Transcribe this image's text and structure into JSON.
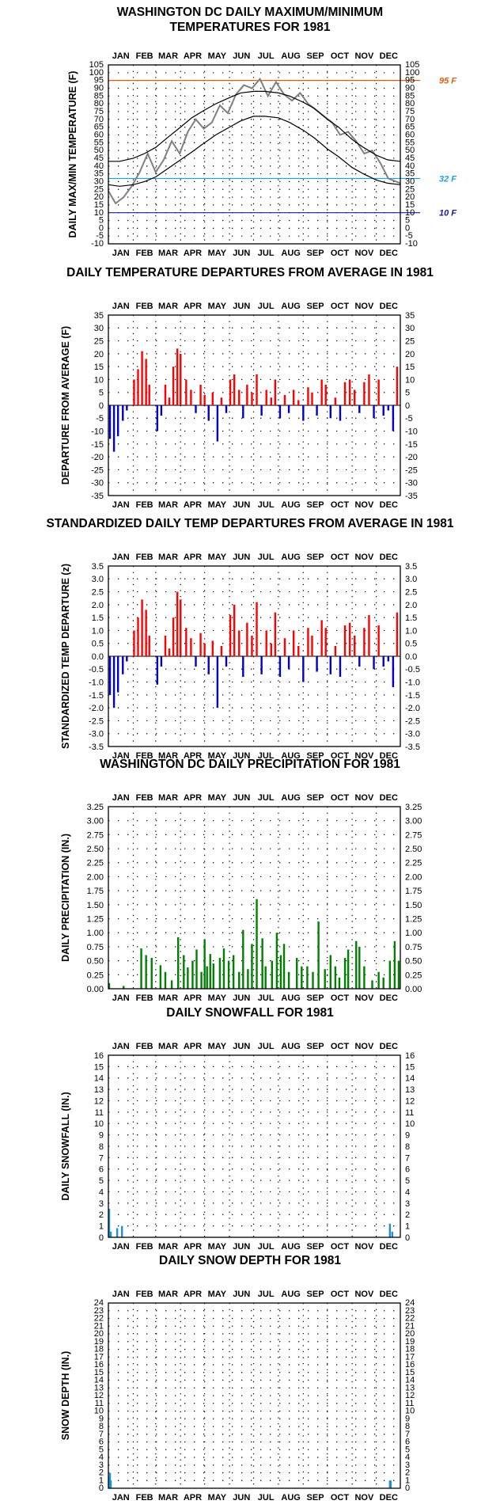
{
  "chart_data": [
    {
      "id": "temp",
      "type": "line",
      "title_lines": [
        "WASHINGTON DC DAILY MAXIMUM/MINIMUM",
        "TEMPERATURES FOR 1981"
      ],
      "ylabel": "DAILY MAX/MIN TEMPERATURE (F)",
      "months": [
        "JAN",
        "FEB",
        "MAR",
        "APR",
        "MAY",
        "JUN",
        "JUL",
        "AUG",
        "SEP",
        "OCT",
        "NOV",
        "DEC"
      ],
      "xlim": [
        1,
        365
      ],
      "ylim": [
        -10,
        105
      ],
      "yticks": [
        -10,
        -5,
        0,
        5,
        10,
        15,
        20,
        25,
        30,
        35,
        40,
        45,
        50,
        55,
        60,
        65,
        70,
        75,
        80,
        85,
        90,
        95,
        100,
        105
      ],
      "ref_lines": [
        {
          "value": 95,
          "label": "95 F",
          "color": "#e06010"
        },
        {
          "value": 32,
          "label": "32 F",
          "color": "#1ea0e6"
        },
        {
          "value": 10,
          "label": "10 F",
          "color": "#1a1aa0"
        }
      ],
      "series": [
        {
          "role": "actual",
          "color": "#808080",
          "x": [
            1,
            10,
            20,
            30,
            40,
            50,
            60,
            70,
            80,
            90,
            100,
            110,
            120,
            130,
            140,
            150,
            160,
            170,
            180,
            190,
            200,
            210,
            220,
            230,
            240,
            250,
            260,
            270,
            280,
            290,
            300,
            310,
            320,
            330,
            340,
            350,
            365
          ],
          "y": [
            24,
            16,
            20,
            27,
            36,
            48,
            36,
            44,
            56,
            48,
            62,
            70,
            64,
            68,
            79,
            74,
            86,
            92,
            90,
            96,
            85,
            94,
            86,
            82,
            87,
            80,
            76,
            72,
            68,
            60,
            62,
            56,
            48,
            50,
            42,
            32,
            29
          ]
        },
        {
          "role": "normal_max",
          "color": "#000000",
          "x": [
            1,
            15,
            32,
            46,
            60,
            74,
            91,
            105,
            121,
            135,
            152,
            166,
            182,
            196,
            213,
            227,
            244,
            258,
            274,
            288,
            305,
            319,
            335,
            349,
            365
          ],
          "y": [
            43,
            43,
            45,
            48,
            52,
            58,
            65,
            71,
            76,
            80,
            84,
            87,
            88,
            88,
            87,
            85,
            81,
            77,
            70,
            65,
            57,
            52,
            47,
            44,
            43
          ]
        },
        {
          "role": "normal_min",
          "color": "#000000",
          "x": [
            1,
            15,
            32,
            46,
            60,
            74,
            91,
            105,
            121,
            135,
            152,
            166,
            182,
            196,
            213,
            227,
            244,
            258,
            274,
            288,
            305,
            319,
            335,
            349,
            365
          ],
          "y": [
            28,
            27,
            28,
            30,
            33,
            38,
            44,
            49,
            55,
            60,
            65,
            69,
            72,
            72,
            71,
            68,
            63,
            58,
            51,
            46,
            39,
            35,
            31,
            29,
            28
          ]
        }
      ]
    },
    {
      "id": "dep",
      "type": "bar",
      "title_lines": [
        "DAILY TEMPERATURE DEPARTURES FROM AVERAGE IN 1981"
      ],
      "ylabel": "DEPARTURE FROM AVERAGE (F)",
      "months": [
        "JAN",
        "FEB",
        "MAR",
        "APR",
        "MAY",
        "JUN",
        "JUL",
        "AUG",
        "SEP",
        "OCT",
        "NOV",
        "DEC"
      ],
      "xlim": [
        1,
        365
      ],
      "ylim": [
        -35,
        35
      ],
      "yticks": [
        -35,
        -30,
        -25,
        -20,
        -15,
        -10,
        -5,
        0,
        5,
        10,
        15,
        20,
        25,
        30,
        35
      ],
      "positive_color": "#ff0000",
      "negative_color": "#0000cc",
      "x": [
        3,
        8,
        13,
        19,
        24,
        33,
        38,
        43,
        48,
        52,
        62,
        67,
        72,
        77,
        82,
        87,
        91,
        98,
        104,
        110,
        116,
        121,
        126,
        131,
        137,
        142,
        148,
        153,
        158,
        164,
        169,
        174,
        180,
        186,
        192,
        198,
        204,
        209,
        215,
        221,
        226,
        232,
        238,
        244,
        250,
        255,
        261,
        267,
        272,
        278,
        284,
        290,
        296,
        302,
        308,
        314,
        320,
        326,
        332,
        338,
        344,
        350,
        356,
        361
      ],
      "values": [
        -13,
        -18,
        -12,
        -6,
        -2,
        10,
        14,
        21,
        18,
        8,
        -10,
        -4,
        8,
        3,
        15,
        22,
        20,
        10,
        6,
        -3,
        8,
        4,
        -6,
        5,
        -14,
        3,
        -3,
        10,
        12,
        6,
        -5,
        8,
        5,
        12,
        -4,
        6,
        3,
        10,
        -5,
        4,
        -3,
        6,
        2,
        -6,
        7,
        5,
        -4,
        10,
        8,
        -5,
        3,
        -6,
        9,
        10,
        6,
        -3,
        9,
        12,
        -5,
        10,
        -4,
        -2,
        -10,
        15
      ]
    },
    {
      "id": "std",
      "type": "bar",
      "title_lines": [
        "STANDARDIZED DAILY TEMP DEPARTURES FROM AVERAGE IN 1981"
      ],
      "ylabel": "STANDARDIZED TEMP DEPARTURE (z)",
      "months": [
        "JAN",
        "FEB",
        "MAR",
        "APR",
        "MAY",
        "JUN",
        "JUL",
        "AUG",
        "SEP",
        "OCT",
        "NOV",
        "DEC"
      ],
      "xlim": [
        1,
        365
      ],
      "ylim": [
        -3.5,
        3.5
      ],
      "yticks": [
        -3.5,
        -3.0,
        -2.5,
        -2.0,
        -1.5,
        -1.0,
        -0.5,
        0.0,
        0.5,
        1.0,
        1.5,
        2.0,
        2.5,
        3.0,
        3.5
      ],
      "positive_color": "#ff0000",
      "negative_color": "#0000cc",
      "x": [
        3,
        8,
        13,
        19,
        24,
        33,
        38,
        43,
        48,
        52,
        62,
        67,
        72,
        77,
        82,
        87,
        91,
        98,
        104,
        110,
        116,
        121,
        126,
        131,
        137,
        142,
        148,
        153,
        158,
        164,
        169,
        174,
        180,
        186,
        192,
        198,
        204,
        209,
        215,
        221,
        226,
        232,
        238,
        244,
        250,
        255,
        261,
        267,
        272,
        278,
        284,
        290,
        296,
        302,
        308,
        314,
        320,
        326,
        332,
        338,
        344,
        350,
        356,
        361
      ],
      "values": [
        -1.5,
        -2.0,
        -1.4,
        -0.7,
        -0.2,
        1.0,
        1.5,
        2.2,
        1.8,
        0.8,
        -1.1,
        -0.4,
        0.8,
        0.3,
        1.5,
        2.5,
        2.2,
        1.1,
        0.7,
        -0.4,
        0.9,
        0.5,
        -0.7,
        0.6,
        -2.0,
        0.4,
        -0.4,
        1.6,
        2.0,
        1.0,
        -0.8,
        1.3,
        0.8,
        2.1,
        -0.7,
        1.0,
        0.5,
        1.7,
        -0.8,
        0.7,
        -0.5,
        1.0,
        0.4,
        -1.0,
        1.1,
        0.8,
        -0.6,
        1.4,
        1.1,
        -0.7,
        0.4,
        -0.8,
        1.2,
        1.3,
        0.8,
        -0.4,
        1.1,
        1.6,
        -0.5,
        1.2,
        -0.4,
        -0.2,
        -1.2,
        1.7
      ]
    },
    {
      "id": "precip",
      "type": "bar",
      "title_lines": [
        "WASHINGTON DC DAILY PRECIPITATION FOR 1981"
      ],
      "ylabel": "DAILY PRECIPITATION (IN.)",
      "months": [
        "JAN",
        "FEB",
        "MAR",
        "APR",
        "MAY",
        "JUN",
        "JUL",
        "AUG",
        "SEP",
        "OCT",
        "NOV",
        "DEC"
      ],
      "xlim": [
        1,
        365
      ],
      "ylim": [
        0,
        3.25
      ],
      "yticks": [
        0.0,
        0.25,
        0.5,
        0.75,
        1.0,
        1.25,
        1.5,
        1.75,
        2.0,
        2.25,
        2.5,
        2.75,
        3.0,
        3.25
      ],
      "color": "#008000",
      "x": [
        2,
        20,
        42,
        48,
        55,
        66,
        72,
        80,
        88,
        95,
        100,
        106,
        111,
        117,
        121,
        124,
        128,
        132,
        140,
        145,
        151,
        157,
        164,
        169,
        175,
        180,
        186,
        193,
        197,
        205,
        211,
        216,
        220,
        226,
        236,
        242,
        249,
        256,
        263,
        271,
        278,
        284,
        289,
        296,
        300,
        310,
        314,
        320,
        330,
        338,
        344,
        352,
        358,
        363
      ],
      "values": [
        0.1,
        0.05,
        0.72,
        0.6,
        0.55,
        0.42,
        0.3,
        0.15,
        0.92,
        0.6,
        0.38,
        0.5,
        0.7,
        0.3,
        0.88,
        0.4,
        0.62,
        0.45,
        0.55,
        0.72,
        0.5,
        0.6,
        0.3,
        1.05,
        0.35,
        0.8,
        1.6,
        0.9,
        0.4,
        0.5,
        1.0,
        0.6,
        0.8,
        0.3,
        0.55,
        0.4,
        0.4,
        0.3,
        1.2,
        0.35,
        0.6,
        0.4,
        0.2,
        0.55,
        0.7,
        0.85,
        0.75,
        0.4,
        0.15,
        0.3,
        0.2,
        0.5,
        0.85,
        0.5
      ]
    },
    {
      "id": "snowfall",
      "type": "bar",
      "title_lines": [
        "DAILY SNOWFALL FOR 1981"
      ],
      "ylabel": "DAILY SNOWFALL (IN.)",
      "months": [
        "JAN",
        "FEB",
        "MAR",
        "APR",
        "MAY",
        "JUN",
        "JUL",
        "AUG",
        "SEP",
        "OCT",
        "NOV",
        "DEC"
      ],
      "xlim": [
        1,
        365
      ],
      "ylim": [
        0,
        16
      ],
      "yticks": [
        0,
        1,
        2,
        3,
        4,
        5,
        6,
        7,
        8,
        9,
        10,
        11,
        12,
        13,
        14,
        15,
        16
      ],
      "color": "#1e8fd8",
      "x": [
        2,
        4,
        12,
        18,
        352,
        355
      ],
      "values": [
        2.5,
        0.5,
        0.8,
        1.0,
        1.2,
        0.5
      ]
    },
    {
      "id": "snowdepth",
      "type": "bar",
      "title_lines": [
        "DAILY SNOW DEPTH FOR 1981"
      ],
      "ylabel": "SNOW DEPTH (IN.)",
      "months": [
        "JAN",
        "FEB",
        "MAR",
        "APR",
        "MAY",
        "JUN",
        "JUL",
        "AUG",
        "SEP",
        "OCT",
        "NOV",
        "DEC"
      ],
      "xlim": [
        1,
        365
      ],
      "ylim": [
        0,
        24
      ],
      "yticks": [
        0,
        1,
        2,
        3,
        4,
        5,
        6,
        7,
        8,
        9,
        10,
        11,
        12,
        13,
        14,
        15,
        16,
        17,
        18,
        19,
        20,
        21,
        22,
        23,
        24
      ],
      "color": "#1e8fd8",
      "x": [
        2,
        3,
        4,
        352,
        353
      ],
      "values": [
        1.5,
        2.0,
        1.0,
        1.0,
        1.0
      ]
    }
  ]
}
